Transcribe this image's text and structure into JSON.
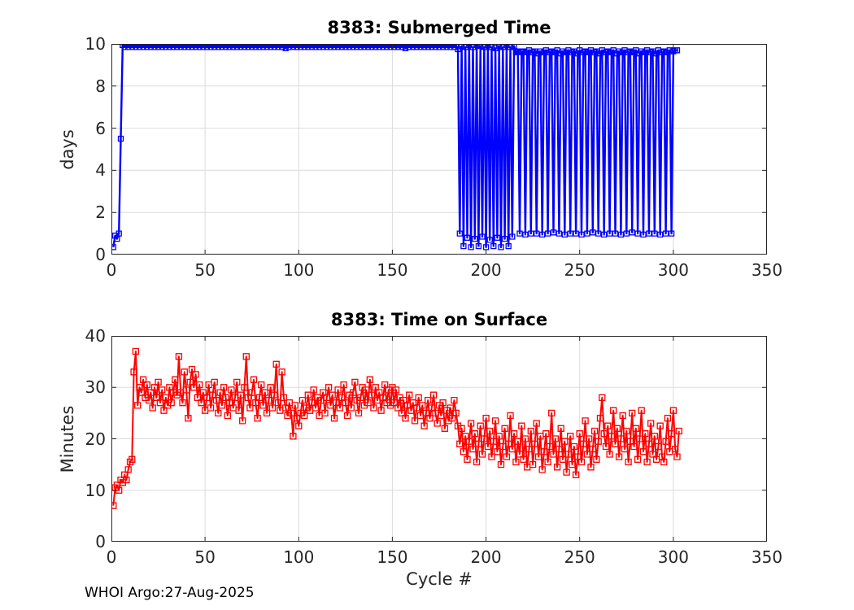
{
  "footer": {
    "text": "WHOI Argo:27-Aug-2025"
  },
  "colors": {
    "submerged_line": "#0000FF",
    "surface_line": "#FF0000",
    "axis": "#262626",
    "grid": "#DBDBDB",
    "background": "#FFFFFF"
  },
  "chart_data": [
    {
      "type": "line",
      "title": "8383: Submerged Time",
      "xlabel": "",
      "ylabel": "days",
      "xlim": [
        0,
        350
      ],
      "ylim": [
        0,
        10
      ],
      "xticks": [
        0,
        50,
        100,
        150,
        200,
        250,
        300,
        350
      ],
      "yticks": [
        0,
        2,
        4,
        6,
        8,
        10
      ],
      "grid": true,
      "x_start": 1,
      "x_step": 1,
      "series": [
        {
          "name": "submerged_days",
          "color": "#0000FF",
          "marker": "square",
          "values": [
            0.35,
            0.9,
            0.75,
            1.0,
            5.5,
            9.95,
            9.85,
            9.95,
            9.85,
            9.95,
            9.85,
            9.95,
            9.85,
            9.95,
            9.85,
            9.95,
            9.85,
            9.95,
            9.85,
            9.95,
            9.85,
            9.95,
            9.85,
            9.95,
            9.85,
            9.95,
            9.85,
            9.95,
            9.85,
            9.95,
            9.85,
            9.95,
            9.85,
            9.95,
            9.85,
            9.95,
            9.85,
            9.95,
            9.85,
            9.95,
            9.85,
            9.95,
            9.85,
            9.95,
            9.85,
            9.95,
            9.85,
            9.95,
            9.85,
            9.95,
            9.85,
            9.95,
            9.85,
            9.95,
            9.85,
            9.95,
            9.85,
            9.95,
            9.85,
            9.95,
            9.85,
            9.95,
            9.85,
            9.95,
            9.85,
            9.95,
            9.85,
            9.95,
            9.85,
            9.95,
            9.85,
            9.95,
            9.85,
            9.95,
            9.85,
            9.95,
            9.85,
            9.95,
            9.85,
            9.95,
            9.85,
            9.95,
            9.85,
            9.95,
            9.85,
            9.95,
            9.85,
            9.95,
            9.85,
            9.95,
            9.85,
            9.95,
            9.8,
            9.95,
            9.85,
            9.95,
            9.85,
            9.95,
            9.85,
            9.95,
            9.85,
            9.95,
            9.85,
            9.95,
            9.85,
            9.95,
            9.85,
            9.95,
            9.85,
            9.95,
            9.85,
            9.95,
            9.85,
            9.95,
            9.85,
            9.95,
            9.85,
            9.95,
            9.85,
            9.95,
            9.85,
            9.95,
            9.85,
            9.95,
            9.85,
            9.95,
            9.85,
            9.95,
            9.85,
            9.95,
            9.85,
            9.95,
            9.85,
            9.95,
            9.85,
            9.95,
            9.85,
            9.95,
            9.85,
            9.95,
            9.85,
            9.95,
            9.85,
            9.95,
            9.85,
            9.95,
            9.85,
            9.95,
            9.85,
            9.95,
            9.85,
            9.95,
            9.85,
            9.95,
            9.85,
            9.95,
            9.8,
            9.95,
            9.85,
            9.95,
            9.85,
            9.95,
            9.85,
            9.95,
            9.85,
            9.95,
            9.85,
            9.95,
            9.85,
            9.95,
            9.85,
            9.95,
            9.85,
            9.95,
            9.85,
            9.95,
            9.85,
            9.95,
            9.85,
            9.95,
            9.85,
            9.95,
            9.85,
            9.95,
            9.75,
            1.0,
            9.9,
            0.4,
            9.85,
            0.8,
            9.95,
            0.35,
            9.85,
            0.75,
            9.95,
            0.4,
            9.9,
            0.85,
            9.85,
            0.35,
            9.95,
            0.7,
            9.85,
            0.4,
            9.8,
            0.8,
            9.9,
            0.35,
            9.85,
            0.75,
            9.95,
            0.4,
            9.85,
            0.85,
            9.9,
            9.6,
            9.65,
            1.0,
            9.6,
            9.65,
            0.95,
            9.6,
            9.7,
            1.0,
            9.6,
            9.65,
            1.0,
            9.55,
            9.65,
            0.95,
            9.6,
            9.7,
            1.0,
            9.6,
            9.65,
            1.05,
            9.6,
            9.7,
            1.0,
            9.55,
            9.65,
            0.95,
            9.6,
            9.7,
            1.0,
            9.6,
            9.65,
            1.0,
            9.55,
            9.7,
            0.95,
            9.6,
            9.65,
            1.0,
            9.6,
            9.7,
            1.05,
            9.6,
            9.65,
            1.0,
            9.55,
            9.7,
            0.95,
            9.6,
            9.65,
            1.0,
            9.6,
            9.7,
            1.0,
            9.55,
            9.65,
            0.95,
            9.6,
            9.7,
            1.0,
            9.6,
            9.65,
            1.05,
            9.6,
            9.7,
            1.0,
            9.55,
            9.65,
            0.95,
            9.6,
            9.7,
            1.0,
            9.6,
            9.65,
            1.0,
            9.55,
            9.7,
            0.95,
            9.6,
            9.65,
            1.0,
            9.6,
            9.7,
            1.0,
            9.65,
            9.7,
            9.7
          ]
        }
      ]
    },
    {
      "type": "line",
      "title": "8383: Time on Surface",
      "xlabel": "Cycle #",
      "ylabel": "Minutes",
      "xlim": [
        0,
        350
      ],
      "ylim": [
        0,
        40
      ],
      "xticks": [
        0,
        50,
        100,
        150,
        200,
        250,
        300,
        350
      ],
      "yticks": [
        0,
        10,
        20,
        30,
        40
      ],
      "grid": true,
      "x_start": 1,
      "x_step": 1,
      "series": [
        {
          "name": "surface_minutes",
          "color": "#FF0000",
          "marker": "square",
          "values": [
            7.0,
            10.5,
            11.0,
            10.0,
            12.0,
            11.5,
            13.0,
            12.0,
            14.0,
            15.5,
            16.0,
            33.0,
            37.0,
            26.5,
            30.0,
            29.0,
            31.5,
            28.0,
            30.5,
            27.5,
            29,
            26,
            30,
            28,
            31,
            27,
            29.5,
            25.5,
            28,
            26.5,
            30,
            27,
            29,
            31.5,
            28.5,
            36,
            29,
            27,
            33,
            29.5,
            24,
            31,
            33.5,
            30,
            32.5,
            28,
            30.5,
            27,
            29,
            25.5,
            28,
            30.5,
            26,
            28.5,
            31,
            27.5,
            25,
            29,
            26.5,
            30,
            28,
            24.5,
            27,
            29.5,
            26,
            28,
            31,
            25.5,
            28.5,
            23.5,
            30,
            36,
            28,
            26,
            29,
            31.5,
            27,
            24,
            28,
            30.5,
            26.5,
            29,
            25,
            27.5,
            30,
            26,
            28.5,
            34.5,
            27,
            25.5,
            33,
            28,
            26,
            24.5,
            27,
            25,
            20.5,
            26.5,
            24,
            22.5,
            25,
            27.5,
            24.5,
            26,
            28.5,
            25.5,
            27,
            29.5,
            26,
            28,
            24.5,
            27.5,
            29,
            25,
            28,
            30,
            26.5,
            28.5,
            24,
            27,
            29.5,
            26,
            28,
            30.5,
            27,
            24.5,
            28.5,
            26,
            29,
            31,
            27.5,
            25,
            28,
            30,
            26.5,
            29.5,
            27,
            31.5,
            28.5,
            26,
            30,
            27.5,
            29,
            25.5,
            28,
            30.5,
            27,
            29.5,
            26.5,
            30,
            27,
            29.5,
            26,
            28,
            25,
            27.5,
            24,
            26.5,
            28.5,
            25.5,
            27,
            23.5,
            26,
            28,
            24.5,
            26.5,
            22.5,
            25,
            27.5,
            24,
            26,
            28.5,
            25,
            23,
            26.5,
            24.5,
            27,
            22,
            25.5,
            23.5,
            26,
            24,
            27.5,
            25,
            22.5,
            19,
            22,
            17.5,
            20.5,
            16,
            19.5,
            23,
            18,
            21,
            15.5,
            19,
            22.5,
            17,
            20,
            24,
            18.5,
            21.5,
            16.5,
            19.5,
            23.5,
            17.5,
            20.5,
            15,
            18.5,
            22,
            16.5,
            19,
            24.5,
            18,
            21,
            15.5,
            19.5,
            17,
            22.5,
            16,
            20,
            14.5,
            18,
            21.5,
            15,
            19,
            23,
            16.5,
            20.5,
            14,
            17.5,
            21,
            15.5,
            18.5,
            25,
            17,
            20,
            14.5,
            18,
            22,
            16,
            19.5,
            13.5,
            17,
            20.5,
            15,
            18.5,
            13,
            16.5,
            21,
            15.5,
            19,
            23.5,
            17,
            20,
            14.5,
            18,
            21.5,
            16,
            19.5,
            24,
            28,
            21,
            18.5,
            22.5,
            17,
            20.5,
            25.5,
            19,
            22,
            16.5,
            20,
            24.5,
            18,
            21.5,
            15.5,
            19.5,
            25,
            18.5,
            22,
            16,
            20,
            25.5,
            17.5,
            21,
            15.5,
            19,
            23,
            17,
            20.5,
            16,
            18.5,
            22.5,
            16.5,
            15.5,
            19.5,
            24,
            17.5,
            21,
            25.5,
            18,
            16.5,
            21.5
          ]
        }
      ]
    }
  ]
}
